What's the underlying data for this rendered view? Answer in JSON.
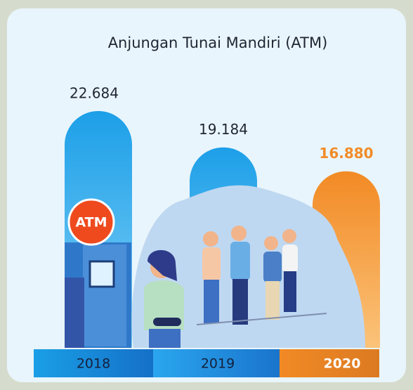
{
  "chart_data": {
    "type": "bar",
    "title": "Anjungan Tunai Mandiri (ATM)",
    "categories": [
      "2018",
      "2019",
      "2020"
    ],
    "values": [
      22684,
      19184,
      16880
    ],
    "value_labels": [
      "22.684",
      "19.184",
      "16.880"
    ],
    "colors": [
      "#2aa9ec",
      "#2aa9ec",
      "#f28c28"
    ],
    "annotation": "ATM"
  }
}
